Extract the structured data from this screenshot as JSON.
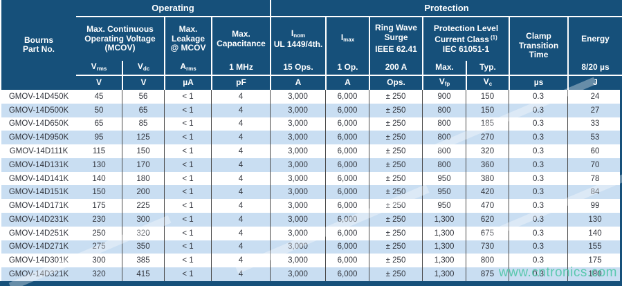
{
  "watermark": "www.cntronics.com",
  "colors": {
    "header_navy": "#16507a",
    "row_alt_blue": "#c9def2",
    "watermark_green": "#46c4a2"
  },
  "header": {
    "part": {
      "line1": "Bourns",
      "line2": "Part No."
    },
    "groups": {
      "operating": "Operating",
      "protection": "Protection"
    },
    "cols": {
      "mcov": {
        "line1": "Max. Continuous",
        "line2": "Operating Voltage",
        "line3": "(MCOV)"
      },
      "leakage": {
        "line1": "Max.",
        "line2": "Leakage",
        "line3": "@ MCOV"
      },
      "capacitance": {
        "line1": "Max.",
        "line2": "Capacitance"
      },
      "inom": {
        "sym_base": "I",
        "sym_sub": "nom",
        "line2": "UL 1449/4th."
      },
      "imax": {
        "sym_base": "I",
        "sym_sub": "max"
      },
      "ringwave": {
        "line1": "Ring Wave",
        "line2": "Surge",
        "line3": "IEEE 62.41"
      },
      "protlevel": {
        "line1": "Protection Level",
        "line2": "Current Class",
        "sup": "(1)",
        "line3": "IEC 61051-1"
      },
      "clamp": {
        "line1": "Clamp",
        "line2": "Transition",
        "line3": "Time"
      },
      "energy": {
        "line1": "Energy"
      }
    },
    "subrow": {
      "vrms": {
        "base": "V",
        "sub": "rms"
      },
      "vdc": {
        "base": "V",
        "sub": "dc"
      },
      "arms": {
        "base": "A",
        "sub": "rms"
      },
      "mhz": "1 MHz",
      "ops15": "15 Ops.",
      "op1": "1 Op.",
      "a200": "200 A",
      "max": "Max.",
      "typ": "Typ.",
      "e820": "8/20 µs"
    },
    "units": {
      "v_rms": "V",
      "v_dc": "V",
      "ua": "µA",
      "pf": "pF",
      "a_nom": "A",
      "a_max": "A",
      "ops": "Ops.",
      "vfp": {
        "base": "V",
        "sub": "fp"
      },
      "vc": {
        "base": "V",
        "sub": "c"
      },
      "us": "µs",
      "j": "J"
    }
  },
  "rows": [
    {
      "part": "GMOV-14D450K",
      "vrms": "45",
      "vdc": "56",
      "leak": "< 1",
      "cap": "4",
      "inom": "3,000",
      "imax": "6,000",
      "ring": "± 250",
      "vfp": "900",
      "vc": "150",
      "clamp": "0.3",
      "energy": "24"
    },
    {
      "part": "GMOV-14D500K",
      "vrms": "50",
      "vdc": "65",
      "leak": "< 1",
      "cap": "4",
      "inom": "3,000",
      "imax": "6,000",
      "ring": "± 250",
      "vfp": "800",
      "vc": "150",
      "clamp": "0.3",
      "energy": "27"
    },
    {
      "part": "GMOV-14D650K",
      "vrms": "65",
      "vdc": "85",
      "leak": "< 1",
      "cap": "4",
      "inom": "3,000",
      "imax": "6,000",
      "ring": "± 250",
      "vfp": "800",
      "vc": "185",
      "clamp": "0.3",
      "energy": "33"
    },
    {
      "part": "GMOV-14D950K",
      "vrms": "95",
      "vdc": "125",
      "leak": "< 1",
      "cap": "4",
      "inom": "3,000",
      "imax": "6,000",
      "ring": "± 250",
      "vfp": "800",
      "vc": "270",
      "clamp": "0.3",
      "energy": "53"
    },
    {
      "part": "GMOV-14D111K",
      "vrms": "115",
      "vdc": "150",
      "leak": "< 1",
      "cap": "4",
      "inom": "3,000",
      "imax": "6,000",
      "ring": "± 250",
      "vfp": "800",
      "vc": "320",
      "clamp": "0.3",
      "energy": "60"
    },
    {
      "part": "GMOV-14D131K",
      "vrms": "130",
      "vdc": "170",
      "leak": "< 1",
      "cap": "4",
      "inom": "3,000",
      "imax": "6,000",
      "ring": "± 250",
      "vfp": "800",
      "vc": "360",
      "clamp": "0.3",
      "energy": "70"
    },
    {
      "part": "GMOV-14D141K",
      "vrms": "140",
      "vdc": "180",
      "leak": "< 1",
      "cap": "4",
      "inom": "3,000",
      "imax": "6,000",
      "ring": "± 250",
      "vfp": "950",
      "vc": "380",
      "clamp": "0.3",
      "energy": "78"
    },
    {
      "part": "GMOV-14D151K",
      "vrms": "150",
      "vdc": "200",
      "leak": "< 1",
      "cap": "4",
      "inom": "3,000",
      "imax": "6,000",
      "ring": "± 250",
      "vfp": "950",
      "vc": "420",
      "clamp": "0.3",
      "energy": "84"
    },
    {
      "part": "GMOV-14D171K",
      "vrms": "175",
      "vdc": "225",
      "leak": "< 1",
      "cap": "4",
      "inom": "3,000",
      "imax": "6,000",
      "ring": "± 250",
      "vfp": "950",
      "vc": "470",
      "clamp": "0.3",
      "energy": "99"
    },
    {
      "part": "GMOV-14D231K",
      "vrms": "230",
      "vdc": "300",
      "leak": "< 1",
      "cap": "4",
      "inom": "3,000",
      "imax": "6,000",
      "ring": "± 250",
      "vfp": "1,300",
      "vc": "620",
      "clamp": "0.3",
      "energy": "130"
    },
    {
      "part": "GMOV-14D251K",
      "vrms": "250",
      "vdc": "320",
      "leak": "< 1",
      "cap": "4",
      "inom": "3,000",
      "imax": "6,000",
      "ring": "± 250",
      "vfp": "1,300",
      "vc": "675",
      "clamp": "0.3",
      "energy": "140"
    },
    {
      "part": "GMOV-14D271K",
      "vrms": "275",
      "vdc": "350",
      "leak": "< 1",
      "cap": "4",
      "inom": "3,000",
      "imax": "6,000",
      "ring": "± 250",
      "vfp": "1,300",
      "vc": "730",
      "clamp": "0.3",
      "energy": "155"
    },
    {
      "part": "GMOV-14D301K",
      "vrms": "300",
      "vdc": "385",
      "leak": "< 1",
      "cap": "4",
      "inom": "3,000",
      "imax": "6,000",
      "ring": "± 250",
      "vfp": "1,300",
      "vc": "800",
      "clamp": "0.3",
      "energy": "175"
    },
    {
      "part": "GMOV-14D321K",
      "vrms": "320",
      "vdc": "415",
      "leak": "< 1",
      "cap": "4",
      "inom": "3,000",
      "imax": "6,000",
      "ring": "± 250",
      "vfp": "1,300",
      "vc": "875",
      "clamp": "0.3",
      "energy": "180"
    }
  ]
}
